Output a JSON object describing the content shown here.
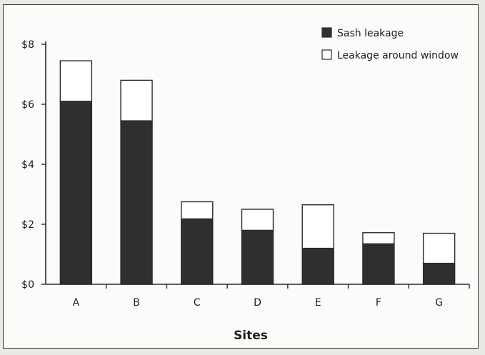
{
  "chart_data": {
    "type": "bar",
    "stacked": true,
    "title": "",
    "xlabel": "Sites",
    "ylabel": "",
    "categories": [
      "A",
      "B",
      "C",
      "D",
      "E",
      "F",
      "G"
    ],
    "series": [
      {
        "name": "Sash leakage",
        "values": [
          6.1,
          5.45,
          2.18,
          1.8,
          1.2,
          1.35,
          0.7
        ],
        "color": "#2f2f2f"
      },
      {
        "name": "Leakage around window",
        "values": [
          1.35,
          1.35,
          0.57,
          0.7,
          1.45,
          0.37,
          1.0
        ],
        "color": "#ffffff"
      }
    ],
    "ylim": [
      0,
      8
    ],
    "yticks": [
      0,
      2,
      4,
      6,
      8
    ],
    "ytick_labels": [
      "$0",
      "$2",
      "$4",
      "$6",
      "$8"
    ],
    "grid": false,
    "legend_position": "top-right"
  }
}
